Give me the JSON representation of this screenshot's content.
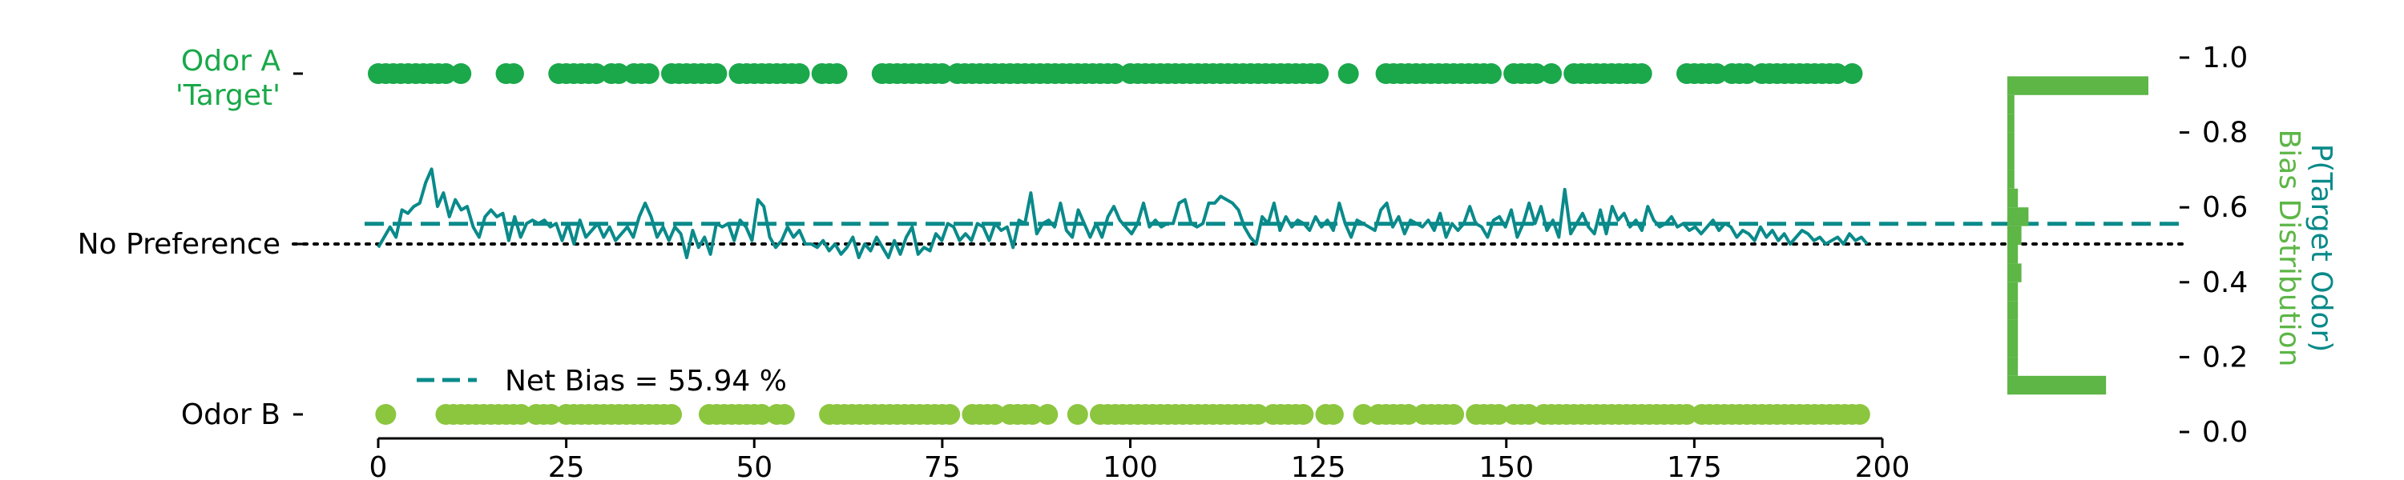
{
  "colors": {
    "odor_a": "#1aa84a",
    "odor_b": "#8cc63f",
    "bias_line": "#0a8a8a",
    "histogram": "#5db646",
    "baseline": "#000000"
  },
  "chart_data": {
    "type": "line",
    "title": "",
    "xlabel": "",
    "x_ticks": [
      0,
      25,
      50,
      75,
      100,
      125,
      150,
      175,
      200
    ],
    "xlim": [
      0,
      200
    ],
    "y_category_labels": {
      "odor_a": [
        "Odor A",
        "'Target'"
      ],
      "no_preference": "No Preference",
      "odor_b": "Odor B"
    },
    "right_axis": {
      "label_line1": "P(Target Odor)",
      "label_line2": "Bias Distribution",
      "ticks": [
        "0.0",
        "0.2",
        "0.4",
        "0.6",
        "0.8",
        "1.0"
      ],
      "ylim": [
        0,
        1
      ]
    },
    "legend": {
      "label": "Net Bias = 55.94 %",
      "placement": "lower-left"
    },
    "net_bias": 0.5594,
    "no_preference_level": 0.5,
    "odor_a_trials": [
      0,
      1,
      2,
      3,
      4,
      5,
      6,
      7,
      8,
      9,
      11,
      17,
      18,
      24,
      25,
      26,
      27,
      28,
      29,
      31,
      32,
      34,
      35,
      36,
      39,
      40,
      41,
      42,
      43,
      44,
      45,
      48,
      49,
      50,
      51,
      52,
      53,
      54,
      55,
      56,
      59,
      60,
      61,
      67,
      68,
      69,
      70,
      71,
      72,
      73,
      74,
      75,
      77,
      78,
      79,
      80,
      81,
      82,
      83,
      84,
      85,
      86,
      87,
      88,
      89,
      90,
      91,
      92,
      93,
      94,
      95,
      96,
      97,
      98,
      100,
      101,
      102,
      103,
      104,
      105,
      106,
      107,
      108,
      109,
      110,
      111,
      112,
      113,
      114,
      115,
      116,
      117,
      118,
      119,
      120,
      121,
      122,
      123,
      124,
      125,
      129,
      134,
      135,
      136,
      137,
      138,
      139,
      140,
      141,
      142,
      143,
      144,
      145,
      146,
      147,
      148,
      151,
      152,
      153,
      154,
      156,
      159,
      160,
      161,
      162,
      163,
      164,
      165,
      166,
      167,
      168,
      174,
      175,
      176,
      177,
      178,
      180,
      181,
      182,
      184,
      185,
      186,
      187,
      188,
      189,
      190,
      191,
      192,
      193,
      194,
      196
    ],
    "odor_b_trials": [
      1,
      9,
      10,
      11,
      12,
      13,
      14,
      15,
      16,
      17,
      18,
      19,
      21,
      22,
      23,
      25,
      26,
      27,
      28,
      29,
      30,
      31,
      32,
      33,
      34,
      35,
      36,
      37,
      38,
      39,
      44,
      45,
      46,
      47,
      48,
      49,
      50,
      51,
      53,
      54,
      60,
      61,
      62,
      63,
      64,
      65,
      66,
      67,
      68,
      69,
      70,
      71,
      72,
      73,
      74,
      75,
      76,
      79,
      80,
      81,
      82,
      84,
      85,
      86,
      87,
      89,
      93,
      96,
      97,
      98,
      99,
      100,
      101,
      102,
      103,
      104,
      105,
      106,
      107,
      108,
      109,
      110,
      111,
      112,
      113,
      114,
      115,
      116,
      117,
      119,
      120,
      121,
      122,
      123,
      126,
      127,
      131,
      133,
      134,
      135,
      136,
      137,
      139,
      140,
      141,
      142,
      143,
      146,
      147,
      148,
      149,
      151,
      152,
      153,
      155,
      156,
      157,
      158,
      159,
      160,
      161,
      162,
      163,
      164,
      165,
      166,
      167,
      168,
      169,
      170,
      171,
      172,
      173,
      174,
      176,
      177,
      178,
      179,
      180,
      181,
      182,
      183,
      184,
      185,
      186,
      187,
      188,
      189,
      190,
      191,
      192,
      193,
      194,
      195,
      196,
      197
    ],
    "bias_series": {
      "start_trial": 0,
      "values": [
        0.49,
        0.52,
        0.55,
        0.52,
        0.6,
        0.59,
        0.61,
        0.62,
        0.68,
        0.72,
        0.61,
        0.65,
        0.58,
        0.63,
        0.6,
        0.61,
        0.55,
        0.52,
        0.58,
        0.6,
        0.58,
        0.59,
        0.51,
        0.58,
        0.52,
        0.56,
        0.57,
        0.56,
        0.57,
        0.55,
        0.56,
        0.51,
        0.56,
        0.5,
        0.57,
        0.52,
        0.54,
        0.56,
        0.52,
        0.55,
        0.51,
        0.53,
        0.55,
        0.52,
        0.58,
        0.62,
        0.58,
        0.52,
        0.55,
        0.51,
        0.55,
        0.53,
        0.46,
        0.54,
        0.49,
        0.52,
        0.47,
        0.56,
        0.55,
        0.56,
        0.51,
        0.57,
        0.55,
        0.51,
        0.63,
        0.61,
        0.52,
        0.49,
        0.51,
        0.55,
        0.52,
        0.54,
        0.5,
        0.5,
        0.49,
        0.51,
        0.48,
        0.5,
        0.47,
        0.49,
        0.52,
        0.46,
        0.5,
        0.48,
        0.52,
        0.49,
        0.46,
        0.51,
        0.47,
        0.52,
        0.55,
        0.47,
        0.49,
        0.48,
        0.53,
        0.51,
        0.56,
        0.55,
        0.51,
        0.53,
        0.51,
        0.56,
        0.55,
        0.51,
        0.56,
        0.54,
        0.55,
        0.49,
        0.57,
        0.56,
        0.65,
        0.53,
        0.56,
        0.57,
        0.55,
        0.62,
        0.54,
        0.52,
        0.6,
        0.56,
        0.52,
        0.56,
        0.52,
        0.58,
        0.61,
        0.57,
        0.55,
        0.53,
        0.56,
        0.62,
        0.55,
        0.57,
        0.55,
        0.56,
        0.56,
        0.62,
        0.63,
        0.56,
        0.55,
        0.56,
        0.62,
        0.62,
        0.64,
        0.63,
        0.62,
        0.6,
        0.55,
        0.52,
        0.5,
        0.58,
        0.56,
        0.62,
        0.54,
        0.58,
        0.55,
        0.57,
        0.56,
        0.54,
        0.58,
        0.55,
        0.57,
        0.54,
        0.62,
        0.56,
        0.52,
        0.57,
        0.56,
        0.55,
        0.54,
        0.6,
        0.62,
        0.55,
        0.58,
        0.53,
        0.57,
        0.56,
        0.55,
        0.57,
        0.54,
        0.59,
        0.52,
        0.56,
        0.54,
        0.56,
        0.61,
        0.56,
        0.55,
        0.52,
        0.57,
        0.58,
        0.55,
        0.6,
        0.52,
        0.56,
        0.62,
        0.56,
        0.61,
        0.54,
        0.57,
        0.52,
        0.66,
        0.53,
        0.56,
        0.59,
        0.55,
        0.53,
        0.6,
        0.53,
        0.61,
        0.57,
        0.59,
        0.55,
        0.57,
        0.54,
        0.61,
        0.57,
        0.55,
        0.56,
        0.58,
        0.55,
        0.56,
        0.54,
        0.55,
        0.53,
        0.55,
        0.57,
        0.54,
        0.56,
        0.55,
        0.52,
        0.54,
        0.53,
        0.51,
        0.55,
        0.52,
        0.54,
        0.51,
        0.53,
        0.5,
        0.52,
        0.54,
        0.53,
        0.51,
        0.52,
        0.5,
        0.51,
        0.52,
        0.5,
        0.53,
        0.51,
        0.52,
        0.5
      ]
    },
    "histogram": {
      "orientation": "horizontal",
      "bins": [
        {
          "lo": 0.0,
          "hi": 0.05,
          "count": 0
        },
        {
          "lo": 0.05,
          "hi": 0.1,
          "count": 0
        },
        {
          "lo": 0.1,
          "hi": 0.15,
          "count": 0
        },
        {
          "lo": 0.15,
          "hi": 0.2,
          "count": 0
        },
        {
          "lo": 0.2,
          "hi": 0.25,
          "count": 0
        },
        {
          "lo": 0.25,
          "hi": 0.3,
          "count": 0
        },
        {
          "lo": 0.3,
          "hi": 0.35,
          "count": 0
        },
        {
          "lo": 0.35,
          "hi": 0.4,
          "count": 0
        },
        {
          "lo": 0.4,
          "hi": 0.45,
          "count": 0
        },
        {
          "lo": 0.45,
          "hi": 0.5,
          "count": 0
        },
        {
          "lo": 0.5,
          "hi": 0.55,
          "count": 0
        },
        {
          "lo": 0.55,
          "hi": 0.6,
          "count": 0
        },
        {
          "lo": 0.6,
          "hi": 0.65,
          "count": 0
        },
        {
          "lo": 0.65,
          "hi": 0.7,
          "count": 0
        },
        {
          "lo": 0.7,
          "hi": 0.75,
          "count": 0
        },
        {
          "lo": 0.75,
          "hi": 0.8,
          "count": 0
        },
        {
          "lo": 0.8,
          "hi": 0.85,
          "count": 0
        },
        {
          "lo": 0.85,
          "hi": 0.9,
          "count": 0
        },
        {
          "lo": 0.9,
          "hi": 0.95,
          "count": 0
        },
        {
          "lo": 0.95,
          "hi": 1.0,
          "count": 0
        }
      ]
    }
  }
}
